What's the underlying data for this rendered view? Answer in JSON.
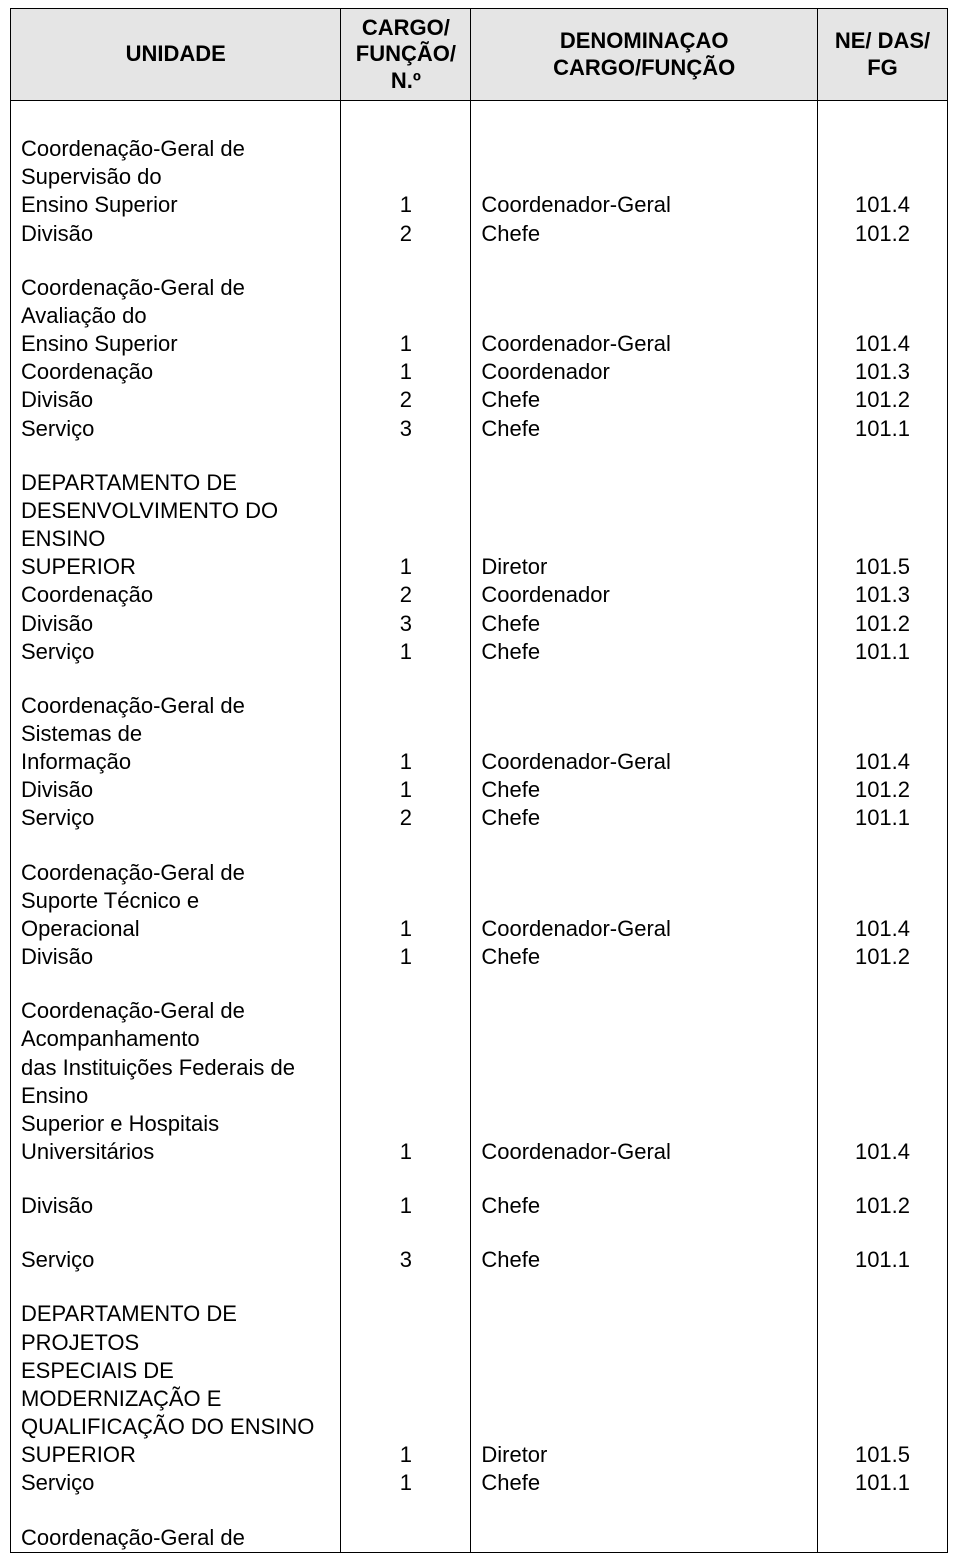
{
  "table": {
    "headers": {
      "unidade": "UNIDADE",
      "cargo_funcao_n": "CARGO/\nFUNÇÃO/\nN.º",
      "denominacao": "DENOMINAÇAO\nCARGO/FUNÇÃO",
      "ne_das_fg": "NE/ DAS/\nFG"
    },
    "header_bg": "#e5e5e5",
    "border_color": "#000000",
    "font_family": "Arial",
    "font_size_pt": 16,
    "rows": [
      {
        "u": "",
        "n": "",
        "d": "",
        "c": "",
        "spacer": true,
        "topspacer": true
      },
      {
        "u": "Coordenação-Geral de",
        "n": "",
        "d": "",
        "c": ""
      },
      {
        "u": "Supervisão do",
        "n": "",
        "d": "",
        "c": ""
      },
      {
        "u": "Ensino Superior",
        "n": "1",
        "d": "Coordenador-Geral",
        "c": "101.4"
      },
      {
        "u": "Divisão",
        "n": "2",
        "d": "Chefe",
        "c": "101.2"
      },
      {
        "u": "",
        "n": "",
        "d": "",
        "c": "",
        "spacer": true
      },
      {
        "u": "Coordenação-Geral de",
        "n": "",
        "d": "",
        "c": ""
      },
      {
        "u": "Avaliação do",
        "n": "",
        "d": "",
        "c": ""
      },
      {
        "u": "Ensino Superior",
        "n": "1",
        "d": "Coordenador-Geral",
        "c": "101.4"
      },
      {
        "u": "Coordenação",
        "n": "1",
        "d": "Coordenador",
        "c": "101.3"
      },
      {
        "u": "Divisão",
        "n": "2",
        "d": "Chefe",
        "c": "101.2"
      },
      {
        "u": "Serviço",
        "n": "3",
        "d": "Chefe",
        "c": "101.1"
      },
      {
        "u": "",
        "n": "",
        "d": "",
        "c": "",
        "spacer": true
      },
      {
        "u": "DEPARTAMENTO DE",
        "n": "",
        "d": "",
        "c": ""
      },
      {
        "u": "DESENVOLVIMENTO DO",
        "n": "",
        "d": "",
        "c": ""
      },
      {
        "u": "ENSINO",
        "n": "",
        "d": "",
        "c": ""
      },
      {
        "u": "SUPERIOR",
        "n": "1",
        "d": "Diretor",
        "c": "101.5"
      },
      {
        "u": "Coordenação",
        "n": "2",
        "d": "Coordenador",
        "c": "101.3"
      },
      {
        "u": "Divisão",
        "n": "3",
        "d": "Chefe",
        "c": "101.2"
      },
      {
        "u": "Serviço",
        "n": "1",
        "d": "Chefe",
        "c": "101.1"
      },
      {
        "u": "",
        "n": "",
        "d": "",
        "c": "",
        "spacer": true
      },
      {
        "u": "Coordenação-Geral de",
        "n": "",
        "d": "",
        "c": ""
      },
      {
        "u": "Sistemas de",
        "n": "",
        "d": "",
        "c": ""
      },
      {
        "u": "Informação",
        "n": "1",
        "d": "Coordenador-Geral",
        "c": "101.4"
      },
      {
        "u": "Divisão",
        "n": "1",
        "d": "Chefe",
        "c": "101.2"
      },
      {
        "u": "Serviço",
        "n": "2",
        "d": "Chefe",
        "c": "101.1"
      },
      {
        "u": "",
        "n": "",
        "d": "",
        "c": "",
        "spacer": true
      },
      {
        "u": "Coordenação-Geral de",
        "n": "",
        "d": "",
        "c": ""
      },
      {
        "u": "Suporte Técnico e",
        "n": "",
        "d": "",
        "c": ""
      },
      {
        "u": "Operacional",
        "n": "1",
        "d": "Coordenador-Geral",
        "c": "101.4"
      },
      {
        "u": "Divisão",
        "n": "1",
        "d": "Chefe",
        "c": "101.2"
      },
      {
        "u": "",
        "n": "",
        "d": "",
        "c": "",
        "spacer": true
      },
      {
        "u": "Coordenação-Geral de",
        "n": "",
        "d": "",
        "c": ""
      },
      {
        "u": "Acompanhamento",
        "n": "",
        "d": "",
        "c": ""
      },
      {
        "u": "das Instituições Federais de",
        "n": "",
        "d": "",
        "c": ""
      },
      {
        "u": "Ensino",
        "n": "",
        "d": "",
        "c": ""
      },
      {
        "u": "Superior e Hospitais",
        "n": "",
        "d": "",
        "c": ""
      },
      {
        "u": "Universitários",
        "n": "1",
        "d": "Coordenador-Geral",
        "c": "101.4"
      },
      {
        "u": "",
        "n": "",
        "d": "",
        "c": "",
        "spacer": true
      },
      {
        "u": "Divisão",
        "n": "1",
        "d": "Chefe",
        "c": "101.2"
      },
      {
        "u": "",
        "n": "",
        "d": "",
        "c": "",
        "spacer": true
      },
      {
        "u": "Serviço",
        "n": "3",
        "d": "Chefe",
        "c": "101.1"
      },
      {
        "u": "",
        "n": "",
        "d": "",
        "c": "",
        "spacer": true
      },
      {
        "u": "DEPARTAMENTO DE",
        "n": "",
        "d": "",
        "c": ""
      },
      {
        "u": "PROJETOS",
        "n": "",
        "d": "",
        "c": ""
      },
      {
        "u": "ESPECIAIS DE",
        "n": "",
        "d": "",
        "c": ""
      },
      {
        "u": "MODERNIZAÇÃO E",
        "n": "",
        "d": "",
        "c": ""
      },
      {
        "u": "QUALIFICAÇÃO DO ENSINO",
        "n": "",
        "d": "",
        "c": ""
      },
      {
        "u": "SUPERIOR",
        "n": "1",
        "d": "Diretor",
        "c": "101.5"
      },
      {
        "u": "Serviço",
        "n": "1",
        "d": "Chefe",
        "c": "101.1"
      },
      {
        "u": "",
        "n": "",
        "d": "",
        "c": "",
        "spacer": true
      },
      {
        "u": "Coordenação-Geral de",
        "n": "",
        "d": "",
        "c": "",
        "last": true
      }
    ]
  }
}
